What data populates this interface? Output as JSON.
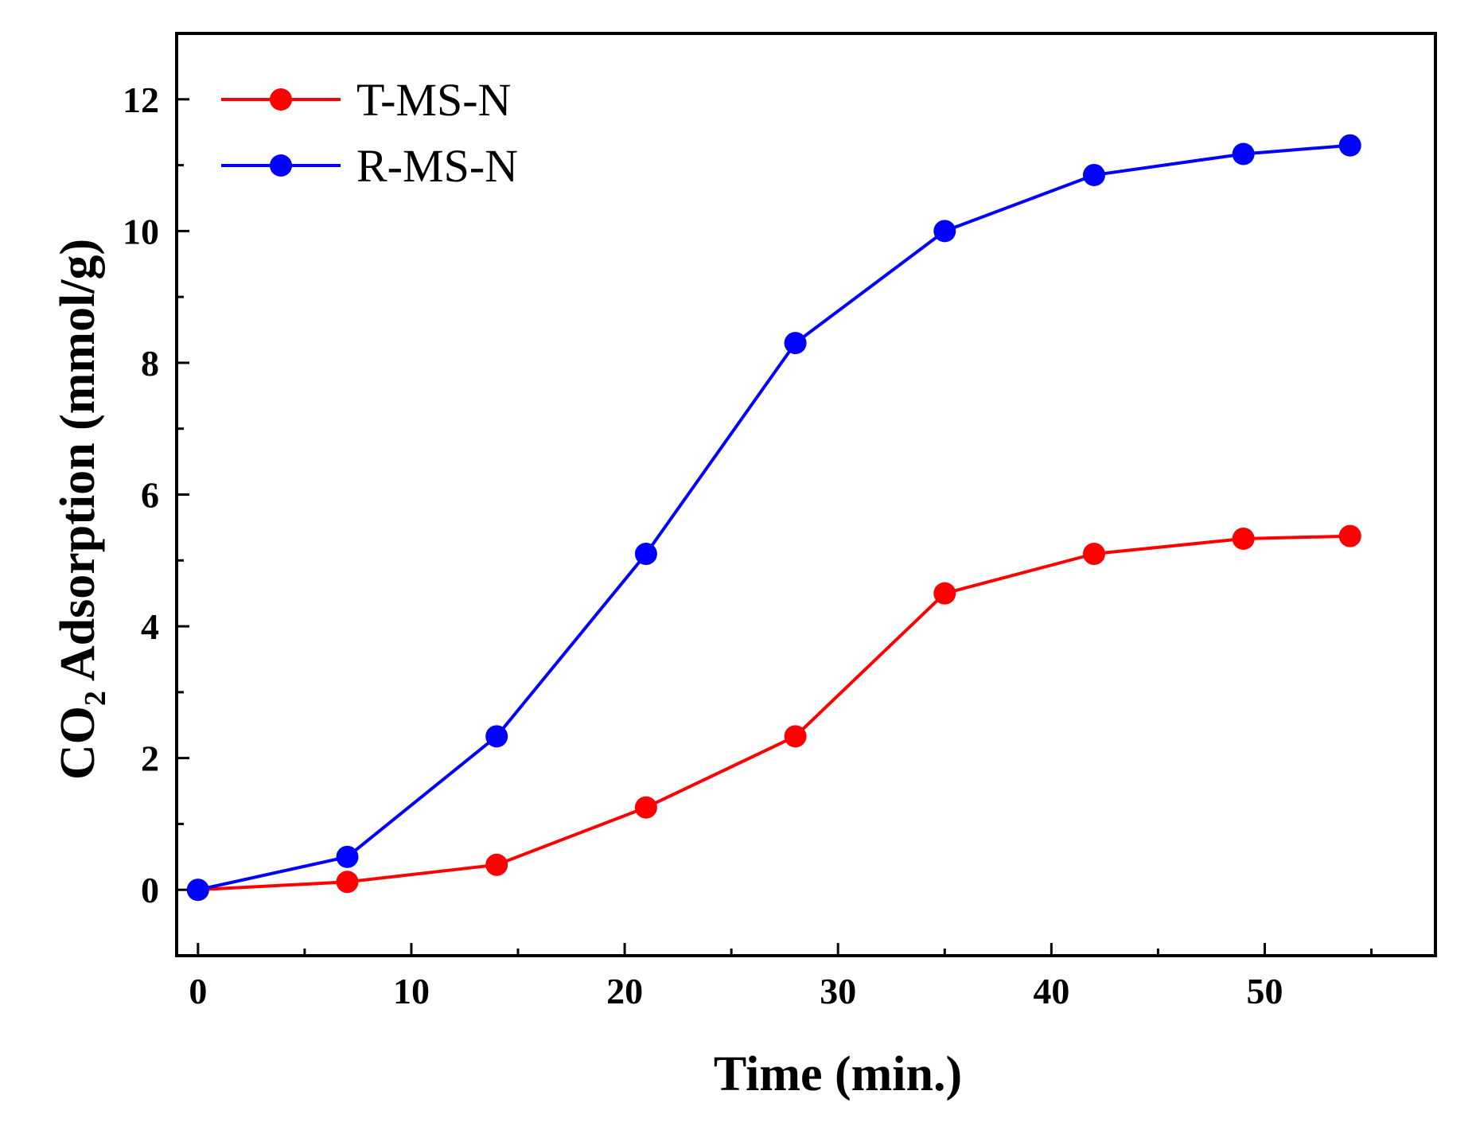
{
  "chart_data": {
    "type": "line",
    "title": "",
    "xlabel": "Time  (min.)",
    "ylabel": {
      "prefix": "CO",
      "subscript": "2",
      "suffix": " Adsorption  (mmol/g)"
    },
    "xlim": [
      -1,
      58
    ],
    "ylim": [
      -1,
      13
    ],
    "xticks": [
      0,
      10,
      20,
      30,
      40,
      50
    ],
    "yticks": [
      0,
      2,
      4,
      6,
      8,
      10,
      12
    ],
    "grid": false,
    "legend_position": "top-left",
    "series": [
      {
        "name": "T-MS-N",
        "color": "#ff0000",
        "x": [
          0,
          7,
          14,
          21,
          28,
          35,
          42,
          49,
          54
        ],
        "y": [
          0,
          0.12,
          0.38,
          1.25,
          2.33,
          4.5,
          5.1,
          5.33,
          5.37
        ]
      },
      {
        "name": "R-MS-N",
        "color": "#0000ff",
        "x": [
          0,
          7,
          14,
          21,
          28,
          35,
          42,
          49,
          54
        ],
        "y": [
          0,
          0.5,
          2.33,
          5.1,
          8.3,
          10.0,
          10.85,
          11.17,
          11.3
        ]
      }
    ]
  }
}
